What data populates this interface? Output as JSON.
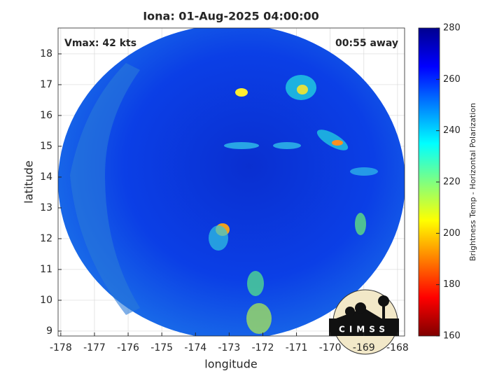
{
  "chart_data": {
    "type": "map",
    "title": "Iona: 01-Aug-2025 04:00:00",
    "vmax_label": "Vmax: 42 kts",
    "time_label": "00:55 away",
    "x_label": "longitude",
    "y_label": "latitude",
    "xlim": [
      -178.08,
      -167.79
    ],
    "ylim": [
      8.84,
      18.84
    ],
    "xticks": [
      -178,
      -177,
      -176,
      -175,
      -174,
      -173,
      -172,
      -171,
      -170,
      -169,
      -168
    ],
    "yticks": [
      9,
      10,
      11,
      12,
      13,
      14,
      15,
      16,
      17,
      18
    ],
    "grid": true,
    "colorbar": {
      "label": "Brightness Temp - Horizontal Polarization",
      "lim": [
        160,
        280
      ],
      "ticks": [
        160,
        180,
        200,
        220,
        240,
        260,
        280
      ],
      "colormap": [
        "#800000",
        "#ff0000",
        "#ff8000",
        "#ffff00",
        "#80ff80",
        "#00ffff",
        "#0080ff",
        "#0000ff",
        "#00008f"
      ]
    },
    "logo": "CIMSS"
  }
}
